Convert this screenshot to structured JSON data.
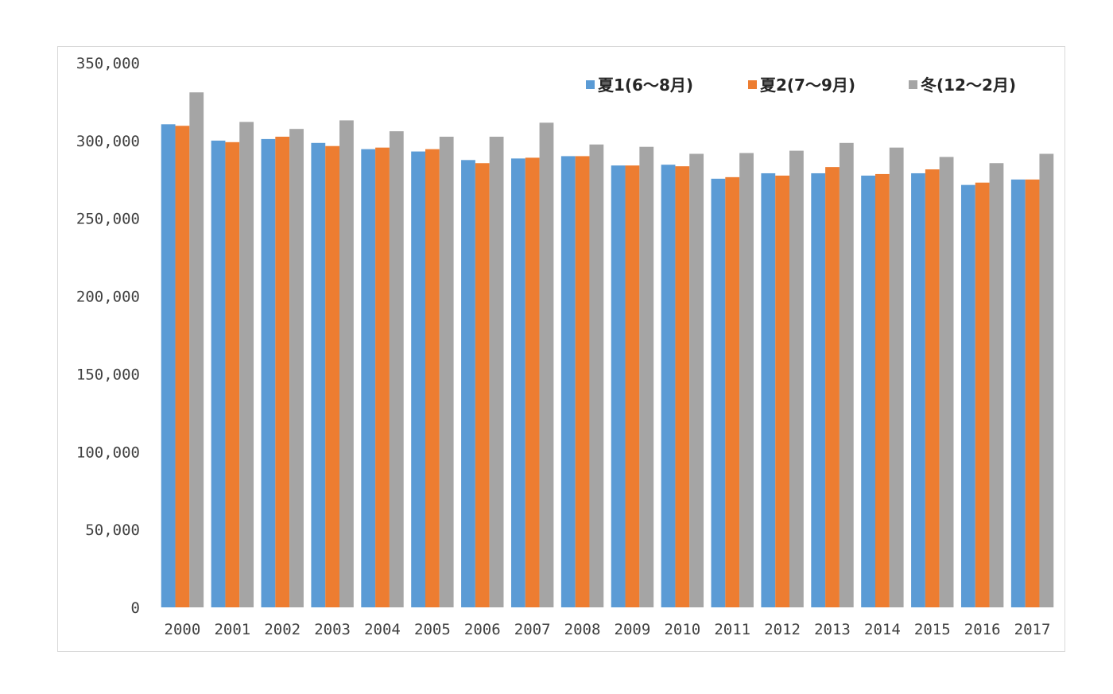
{
  "chart_data": {
    "type": "bar",
    "categories": [
      "2000",
      "2001",
      "2002",
      "2003",
      "2004",
      "2005",
      "2006",
      "2007",
      "2008",
      "2009",
      "2010",
      "2011",
      "2012",
      "2013",
      "2014",
      "2015",
      "2016",
      "2017"
    ],
    "series": [
      {
        "name": "夏1(6～8月)",
        "color": "#5B9BD5",
        "values": [
          310500,
          300000,
          301000,
          298500,
          294500,
          293000,
          287500,
          288500,
          290000,
          284000,
          284500,
          275500,
          279000,
          279000,
          277500,
          279000,
          271500,
          275000
        ]
      },
      {
        "name": "夏2(7～9月)",
        "color": "#ED7D31",
        "values": [
          309500,
          299000,
          302500,
          296500,
          295500,
          294500,
          285500,
          289000,
          290000,
          284000,
          283500,
          276500,
          277500,
          283000,
          278500,
          281500,
          273000,
          275000
        ]
      },
      {
        "name": "冬(12～2月)",
        "color": "#A5A5A5",
        "values": [
          331000,
          312000,
          307500,
          313000,
          306000,
          302500,
          302500,
          311500,
          297500,
          296000,
          291500,
          292000,
          293500,
          298500,
          295500,
          289500,
          285500,
          291500
        ]
      }
    ],
    "y_ticks": [
      "0",
      "50,000",
      "100,000",
      "150,000",
      "200,000",
      "250,000",
      "300,000",
      "350,000"
    ],
    "ylim": [
      0,
      350000
    ],
    "grid": false,
    "legend_position": "top-right",
    "title": "",
    "xlabel": "",
    "ylabel": ""
  }
}
